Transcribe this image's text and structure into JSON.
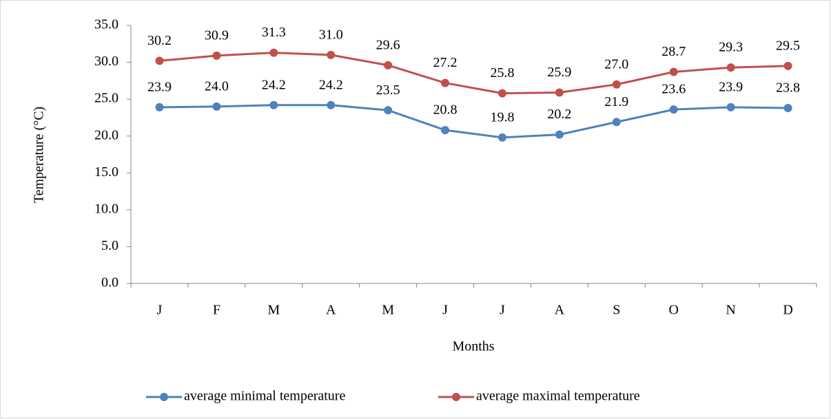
{
  "chart_data": {
    "type": "line",
    "categories": [
      "J",
      "F",
      "M",
      "A",
      "M",
      "J",
      "J",
      "A",
      "S",
      "O",
      "N",
      "D"
    ],
    "series": [
      {
        "name": "average minimal temperature",
        "color": "#4f81bd",
        "values": [
          23.9,
          24.0,
          24.2,
          24.2,
          23.5,
          20.8,
          19.8,
          20.2,
          21.9,
          23.6,
          23.9,
          23.8
        ],
        "value_labels": [
          "23.9",
          "24.0",
          "24.2",
          "24.2",
          "23.5",
          "20.8",
          "19.8",
          "20.2",
          "21.9",
          "23.6",
          "23.9",
          "23.8"
        ]
      },
      {
        "name": "average maximal temperature",
        "color": "#c0504d",
        "values": [
          30.2,
          30.9,
          31.3,
          31.0,
          29.6,
          27.2,
          25.8,
          25.9,
          27.0,
          28.7,
          29.3,
          29.5
        ],
        "value_labels": [
          "30.2",
          "30.9",
          "31.3",
          "31.0",
          "29.6",
          "27.2",
          "25.8",
          "25.9",
          "27.0",
          "28.7",
          "29.3",
          "29.5"
        ]
      }
    ],
    "xlabel": "Months",
    "ylabel": "Temperature (°C)",
    "ylim": [
      0,
      35
    ],
    "yticks": [
      {
        "value": 0,
        "label": "0.0"
      },
      {
        "value": 5,
        "label": "5.0"
      },
      {
        "value": 10,
        "label": "10.0"
      },
      {
        "value": 15,
        "label": "15.0"
      },
      {
        "value": 20,
        "label": "20.0"
      },
      {
        "value": 25,
        "label": "25.0"
      },
      {
        "value": 30,
        "label": "30.0"
      },
      {
        "value": 35,
        "label": "35.0"
      }
    ],
    "grid": false,
    "legend": "bottom"
  }
}
